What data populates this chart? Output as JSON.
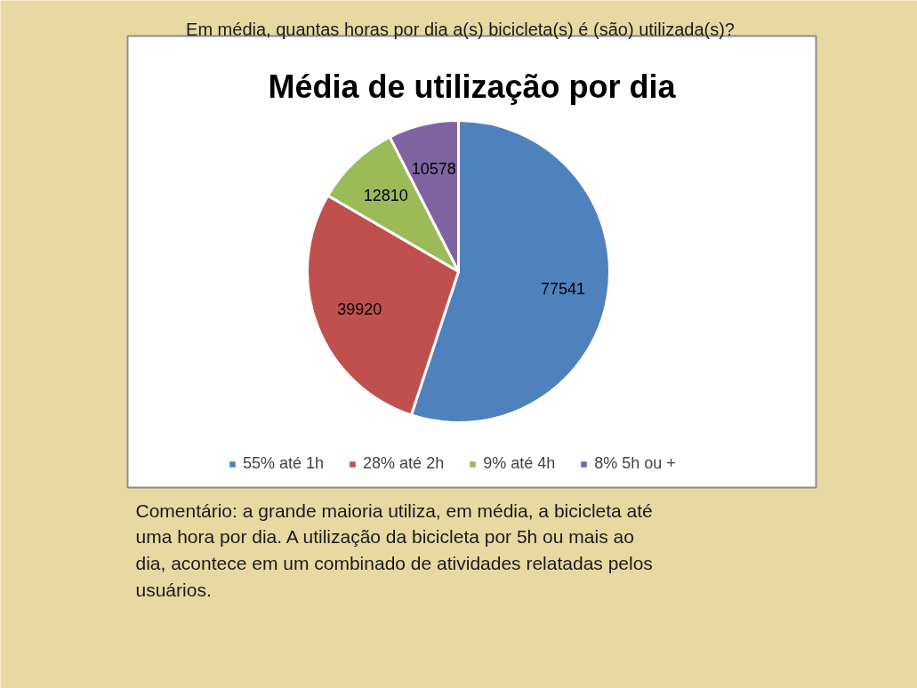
{
  "chart_data": {
    "type": "pie",
    "title": "Média de utilização por dia",
    "categories": [
      "55% até 1h",
      "28% até 2h",
      "9% até 4h",
      "8% 5h ou +"
    ],
    "values": [
      77541,
      39920,
      12810,
      10578
    ],
    "colors": [
      "#4f81bd",
      "#c0504d",
      "#9bbb59",
      "#8064a2"
    ],
    "data_labels": true,
    "legend": "bottom",
    "annotations": [
      "Em média, quantas horas por dia a(s) bicicleta(s) é (são) utilizada(s)?",
      "Comentário: a grande maioria utiliza, em média, a bicicleta até uma hora por dia. A utilização da bicicleta por 5h ou mais ao dia, acontece em um combinado de atividades relatadas pelos usuários."
    ]
  }
}
